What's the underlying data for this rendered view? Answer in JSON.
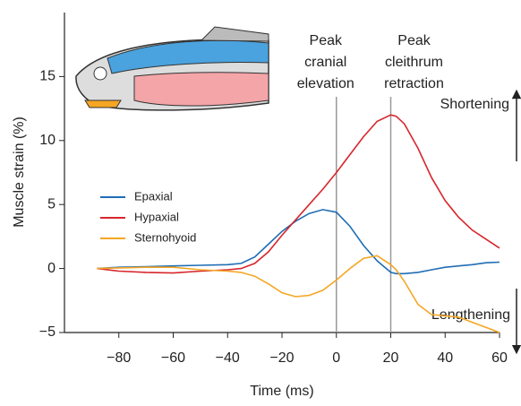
{
  "chart_data": {
    "type": "line",
    "x_label": "Time (ms)",
    "y_label": "Muscle strain (%)",
    "x": [
      -88,
      -80,
      -70,
      -60,
      -50,
      -40,
      -35,
      -30,
      -25,
      -20,
      -15,
      -10,
      -5,
      0,
      5,
      10,
      15,
      20,
      22,
      25,
      30,
      35,
      40,
      45,
      50,
      55,
      60
    ],
    "series": [
      {
        "name": "Epaxial",
        "color": "#1f6db5",
        "values": [
          0,
          0.1,
          0.15,
          0.2,
          0.25,
          0.3,
          0.4,
          0.9,
          1.9,
          2.9,
          3.7,
          4.3,
          4.6,
          4.4,
          3.3,
          1.8,
          0.6,
          -0.3,
          -0.4,
          -0.4,
          -0.3,
          -0.1,
          0.1,
          0.2,
          0.3,
          0.45,
          0.5
        ]
      },
      {
        "name": "Hypaxial",
        "color": "#d7262b",
        "values": [
          0,
          -0.2,
          -0.3,
          -0.35,
          -0.2,
          -0.1,
          0,
          0.4,
          1.3,
          2.6,
          3.8,
          5,
          6.2,
          7.5,
          8.9,
          10.3,
          11.5,
          12,
          11.9,
          11.3,
          9.4,
          7.1,
          5.3,
          4,
          3,
          2.3,
          1.6
        ]
      },
      {
        "name": "Sternohyoid",
        "color": "#f5a623",
        "values": [
          0,
          0.05,
          0.1,
          0.1,
          -0.1,
          -0.2,
          -0.3,
          -0.6,
          -1.2,
          -1.9,
          -2.2,
          -2.1,
          -1.7,
          -0.9,
          0,
          0.8,
          1,
          0.3,
          -0.1,
          -1,
          -2.8,
          -3.6,
          -3.7,
          -3.8,
          -4.2,
          -4.6,
          -5
        ]
      }
    ],
    "xlim": [
      -100,
      60
    ],
    "xticks": [
      {
        "value": -80,
        "label": "−80"
      },
      {
        "value": -60,
        "label": "−60"
      },
      {
        "value": -40,
        "label": "−40"
      },
      {
        "value": -20,
        "label": "−20"
      },
      0,
      20,
      40,
      60
    ],
    "ylim": [
      -5,
      20
    ],
    "yticks": [
      {
        "value": -5,
        "label": "−5"
      },
      0,
      5,
      10,
      15
    ],
    "vlines": [
      {
        "x": 0,
        "label": [
          "Peak",
          "cranial",
          "elevation"
        ]
      },
      {
        "x": 20,
        "label": [
          "Peak",
          "cleithrum",
          "retraction"
        ]
      }
    ],
    "annotations": [
      "Shortening",
      "Lengthening"
    ]
  }
}
